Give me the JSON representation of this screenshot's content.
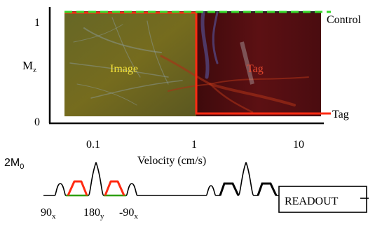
{
  "figure": {
    "y_axis_label": "M",
    "y_axis_label_sub": "z",
    "y_ticks": [
      "1",
      "0"
    ],
    "x_ticks": [
      "0.1",
      "1",
      "10"
    ],
    "x_axis_label": "Velocity (cm/s)",
    "region_labels": {
      "image": "Image",
      "tag": "Tag"
    },
    "curve_labels": {
      "control": "Control",
      "tag": "Tag"
    },
    "colors": {
      "image_region": "#6f6a1f",
      "tag_region": "#5a0f12",
      "tag_curve": "#ff2a12",
      "control_curve": "#35d92a",
      "image_label": "#f3e23a",
      "tag_label": "#e84a2f"
    }
  },
  "pulse_sequence": {
    "amplitude_label": "2M",
    "amplitude_label_sub": "0",
    "pulse_labels": [
      {
        "main": "90",
        "sub": "x"
      },
      {
        "main": "180",
        "sub": "y"
      },
      {
        "main": "-90",
        "sub": "x"
      }
    ],
    "readout_label": "READOUT"
  }
}
